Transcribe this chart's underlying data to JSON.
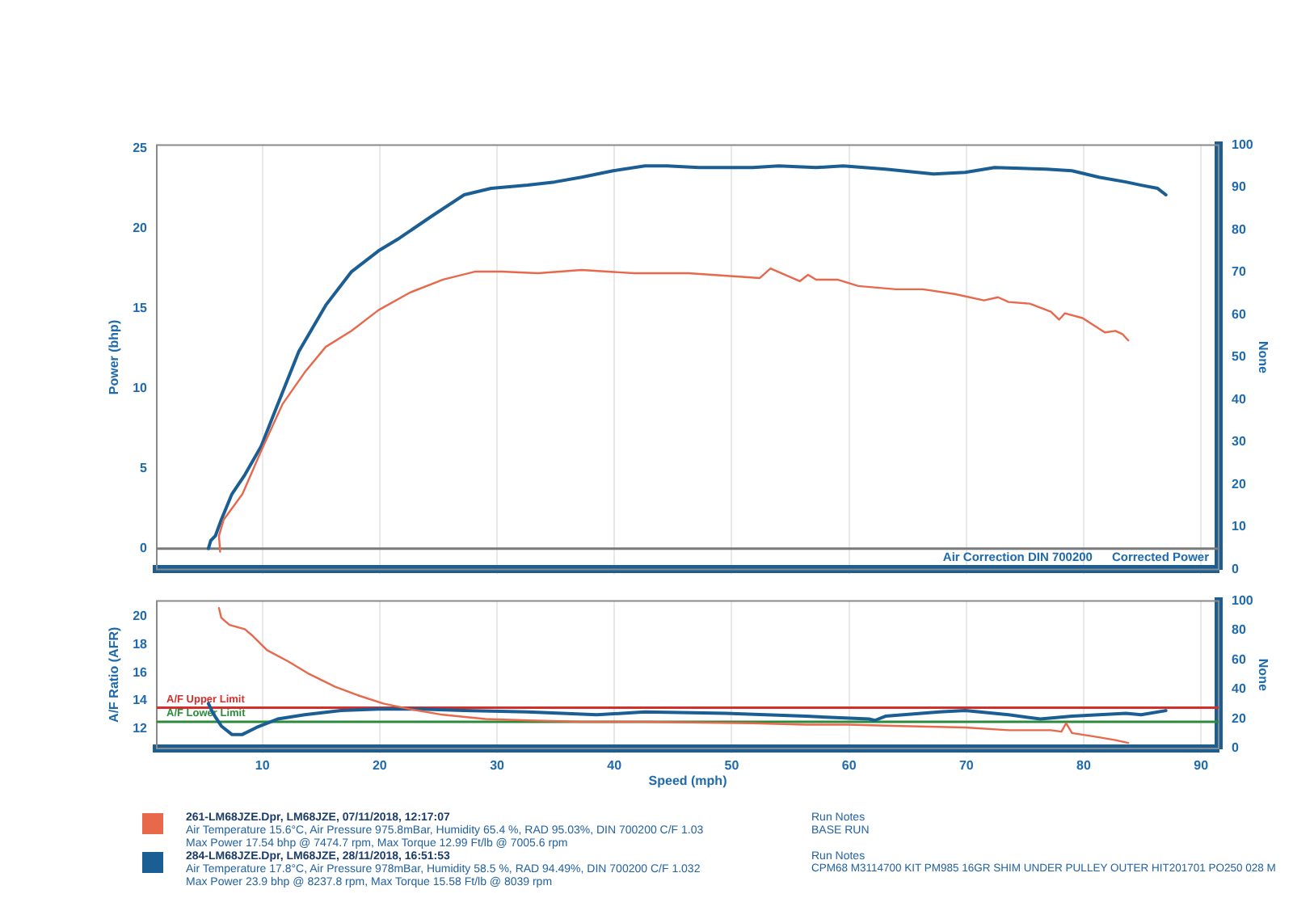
{
  "chart_data": [
    {
      "type": "line",
      "ylabel": "Power (bhp)",
      "y2label": "None",
      "xlim": [
        1,
        91.5
      ],
      "xticks": [
        10,
        20,
        30,
        40,
        50,
        60,
        70,
        80,
        90
      ],
      "ylim": [
        -1.3,
        25.2
      ],
      "yticks": [
        0,
        5,
        10,
        15,
        20,
        25
      ],
      "y2lim": [
        0,
        100
      ],
      "y2ticks": [
        0,
        10,
        20,
        30,
        40,
        50,
        60,
        70,
        80,
        90,
        100
      ],
      "grid": "x",
      "tick_labels": "y",
      "ref_lines": [
        {
          "axis": "y",
          "value": 0,
          "color": "#7a7a7a"
        }
      ],
      "annotations": [
        "Air Correction DIN 700200",
        "Corrected Power"
      ],
      "series": [
        {
          "color": "#e8684c",
          "x": [
            6.4,
            6.3,
            6.7,
            8.3,
            9.9,
            11.7,
            13.6,
            15.4,
            17.6,
            19.9,
            22.6,
            25.4,
            28.1,
            30.4,
            33.5,
            37.2,
            41.7,
            46.3,
            52.4,
            53.3,
            55.8,
            56.5,
            57.2,
            59.0,
            60.8,
            64.0,
            66.3,
            69.0,
            71.5,
            72.7,
            73.6,
            75.4,
            77.2,
            77.9,
            78.4,
            79.9,
            81.8,
            82.7,
            83.3,
            83.8
          ],
          "values": [
            -0.2,
            0.8,
            1.8,
            3.4,
            6.1,
            9.0,
            11.0,
            12.6,
            13.6,
            14.9,
            16.0,
            16.8,
            17.3,
            17.3,
            17.2,
            17.4,
            17.2,
            17.2,
            16.9,
            17.5,
            16.7,
            17.1,
            16.8,
            16.8,
            16.4,
            16.2,
            16.2,
            15.9,
            15.5,
            15.7,
            15.4,
            15.3,
            14.8,
            14.3,
            14.7,
            14.4,
            13.5,
            13.6,
            13.4,
            13.0
          ]
        },
        {
          "color": "#1b5e94",
          "x": [
            5.4,
            5.6,
            6.0,
            6.5,
            7.4,
            8.5,
            9.9,
            11.3,
            13.1,
            15.4,
            17.6,
            19.9,
            21.7,
            24.5,
            27.2,
            29.5,
            32.6,
            34.9,
            37.2,
            39.9,
            42.6,
            44.5,
            47.2,
            51.8,
            54.0,
            57.2,
            59.5,
            63.1,
            67.2,
            69.9,
            72.4,
            76.8,
            79.0,
            81.3,
            83.6,
            84.9,
            86.3,
            87.0
          ],
          "values": [
            0,
            0.5,
            0.8,
            1.8,
            3.4,
            4.6,
            6.4,
            9.0,
            12.3,
            15.2,
            17.3,
            18.6,
            19.4,
            20.8,
            22.1,
            22.5,
            22.7,
            22.9,
            23.2,
            23.6,
            23.9,
            23.9,
            23.8,
            23.8,
            23.9,
            23.8,
            23.9,
            23.7,
            23.4,
            23.5,
            23.8,
            23.7,
            23.6,
            23.2,
            22.9,
            22.7,
            22.5,
            22.1
          ]
        }
      ]
    },
    {
      "type": "line",
      "xlabel": "Speed (mph)",
      "ylabel": "A/F Ratio (AFR)",
      "y2label": "None",
      "xlim": [
        1,
        91.5
      ],
      "xticks": [
        10,
        20,
        30,
        40,
        50,
        60,
        70,
        80,
        90
      ],
      "ylim": [
        10.6,
        21.1
      ],
      "yticks": [
        12,
        14,
        16,
        18,
        20
      ],
      "y2lim": [
        0,
        100
      ],
      "y2ticks": [
        0,
        20,
        40,
        60,
        80,
        100
      ],
      "grid": "x",
      "legend": "bottom",
      "ref_lines": [
        {
          "axis": "y",
          "value": 13.5,
          "label": "A/F Upper Limit",
          "color": "#d4302b"
        },
        {
          "axis": "y",
          "value": 12.5,
          "label": "A/F Lower Limit",
          "color": "#2c8a3c"
        }
      ],
      "annotations": [
        "Air Temperature 15.6°C, Air Pressure 975.8mBar, Humidity 65.4 %, RAD 95.03%, DIN 700200 C/F 1.03",
        "Max Power 17.54 bhp @ 7474.7 rpm, Max Torque 12.99 Ft/lb @ 7005.6 rpm",
        "Air Temperature 17.8°C, Air Pressure 978mBar, Humidity 58.5 %, RAD 94.49%, DIN 700200 C/F 1.032",
        "Max Power 23.9 bhp @ 8237.8 rpm, Max Torque 15.58 Ft/lb @ 8039 rpm",
        "Run Notes",
        "BASE RUN",
        "Run Notes",
        "CPM68 M3114700 KIT PM985 16GR SHIM UNDER PULLEY OUTER HIT201701 PO250 028 M"
      ],
      "series": [
        {
          "name": "261-LM68JZE.Dpr, LM68JZE, 07/11/2018, 12:17:07",
          "color": "#e8684c",
          "x": [
            6.3,
            6.5,
            7.2,
            8.5,
            9.2,
            10.4,
            12.2,
            14.0,
            16.2,
            18.1,
            20.3,
            22.6,
            25.4,
            29.0,
            32.6,
            37.2,
            42.6,
            51.8,
            56.3,
            59.9,
            64.5,
            69.9,
            73.6,
            77.2,
            78.1,
            78.5,
            79.0,
            81.3,
            82.7,
            83.8
          ],
          "values": [
            20.6,
            19.9,
            19.4,
            19.1,
            18.6,
            17.6,
            16.8,
            15.9,
            15.0,
            14.4,
            13.8,
            13.4,
            13.0,
            12.7,
            12.6,
            12.5,
            12.5,
            12.4,
            12.3,
            12.3,
            12.2,
            12.1,
            11.9,
            11.9,
            11.8,
            12.4,
            11.7,
            11.4,
            11.2,
            11.0
          ]
        },
        {
          "name": "284-LM68JZE.Dpr, LM68JZE, 28/11/2018, 16:51:53",
          "color": "#1b5e94",
          "x": [
            5.4,
            5.8,
            6.5,
            7.4,
            8.3,
            9.5,
            11.3,
            13.6,
            16.7,
            19.9,
            23.5,
            27.2,
            32.6,
            38.5,
            42.6,
            49.5,
            56.3,
            61.7,
            62.2,
            63.1,
            67.7,
            69.9,
            73.6,
            76.3,
            79.0,
            83.6,
            84.9,
            87.0
          ],
          "values": [
            13.8,
            13.1,
            12.2,
            11.6,
            11.6,
            12.1,
            12.7,
            13.0,
            13.3,
            13.4,
            13.4,
            13.3,
            13.2,
            13.0,
            13.2,
            13.1,
            12.9,
            12.7,
            12.6,
            12.9,
            13.2,
            13.3,
            13.0,
            12.7,
            12.9,
            13.1,
            13.0,
            13.3
          ]
        }
      ]
    }
  ]
}
